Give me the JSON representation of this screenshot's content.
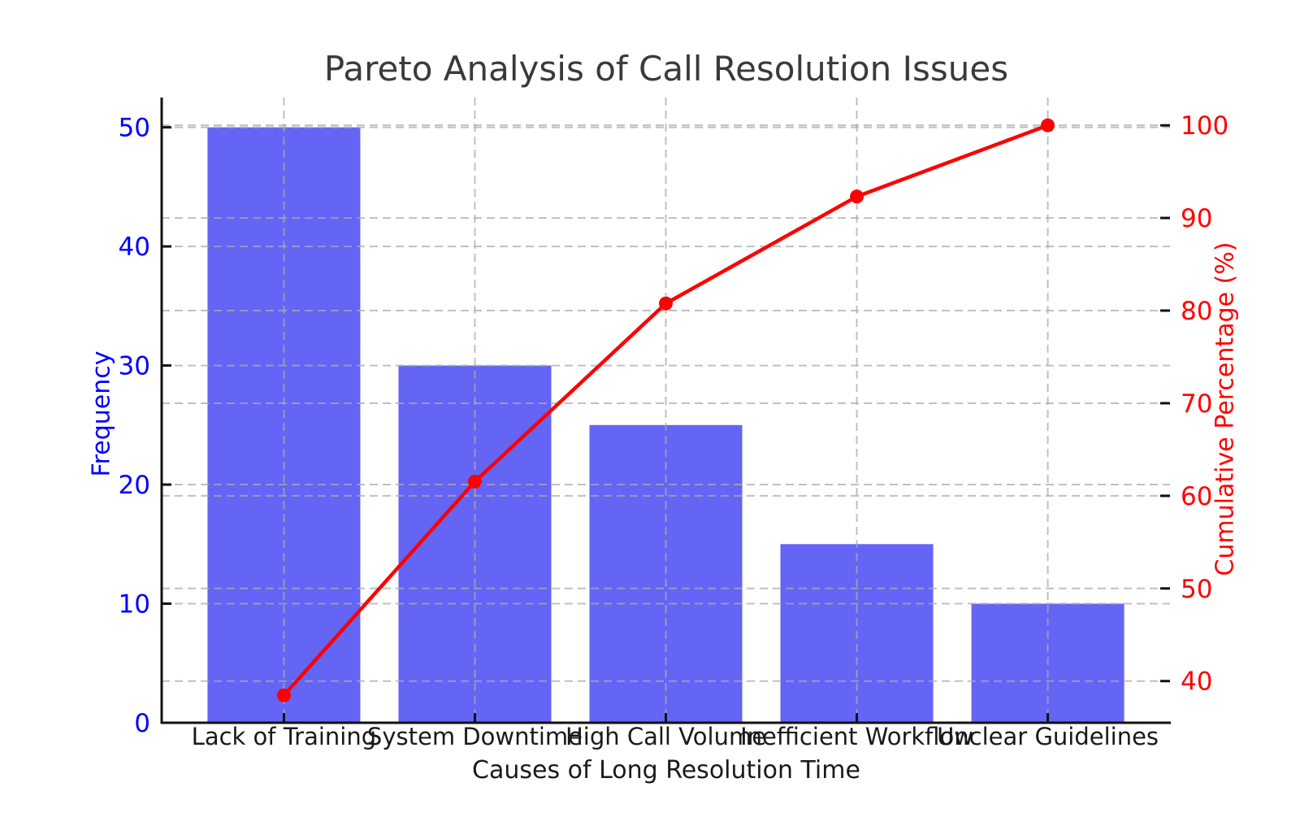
{
  "chart_data": {
    "type": "bar",
    "subtype": "pareto (bar + cumulative line, dual y-axes)",
    "title": "Pareto Analysis of Call Resolution Issues",
    "xlabel": "Causes of Long Resolution Time",
    "ylabel_left": "Frequency",
    "ylabel_right": "Cumulative Percentage (%)",
    "categories": [
      "Lack of Training",
      "System Downtime",
      "High Call Volume",
      "Inefficient Workflow",
      "Unclear Guidelines"
    ],
    "series": [
      {
        "name": "Frequency",
        "type": "bar",
        "color": "#6464f5",
        "values": [
          50,
          30,
          25,
          15,
          10
        ]
      },
      {
        "name": "Cumulative Percentage (%)",
        "type": "line",
        "color": "#ff0000",
        "values": [
          38.46,
          61.54,
          80.77,
          92.31,
          100.0
        ]
      }
    ],
    "yticks_left": [
      0,
      10,
      20,
      30,
      40,
      50
    ],
    "yticks_right": [
      40,
      50,
      60,
      70,
      80,
      90,
      100
    ],
    "ylim_left": [
      0,
      52.5
    ],
    "ylim_right": [
      35.5,
      103
    ],
    "xlim": [
      -0.64,
      4.64
    ],
    "bar_width_fraction": 0.8,
    "grid": true,
    "grid_style": "dashed",
    "legend_position": "none",
    "colors": {
      "bar": "#6464f5",
      "line": "#ff0000",
      "marker": "#ff0000",
      "left_axis_text": "#0000ff",
      "right_axis_text": "#ff0000",
      "title_text": "#3a3a3a",
      "tick_text": "#1a1a1a",
      "grid": "#ababab",
      "spine": "#111111"
    }
  }
}
